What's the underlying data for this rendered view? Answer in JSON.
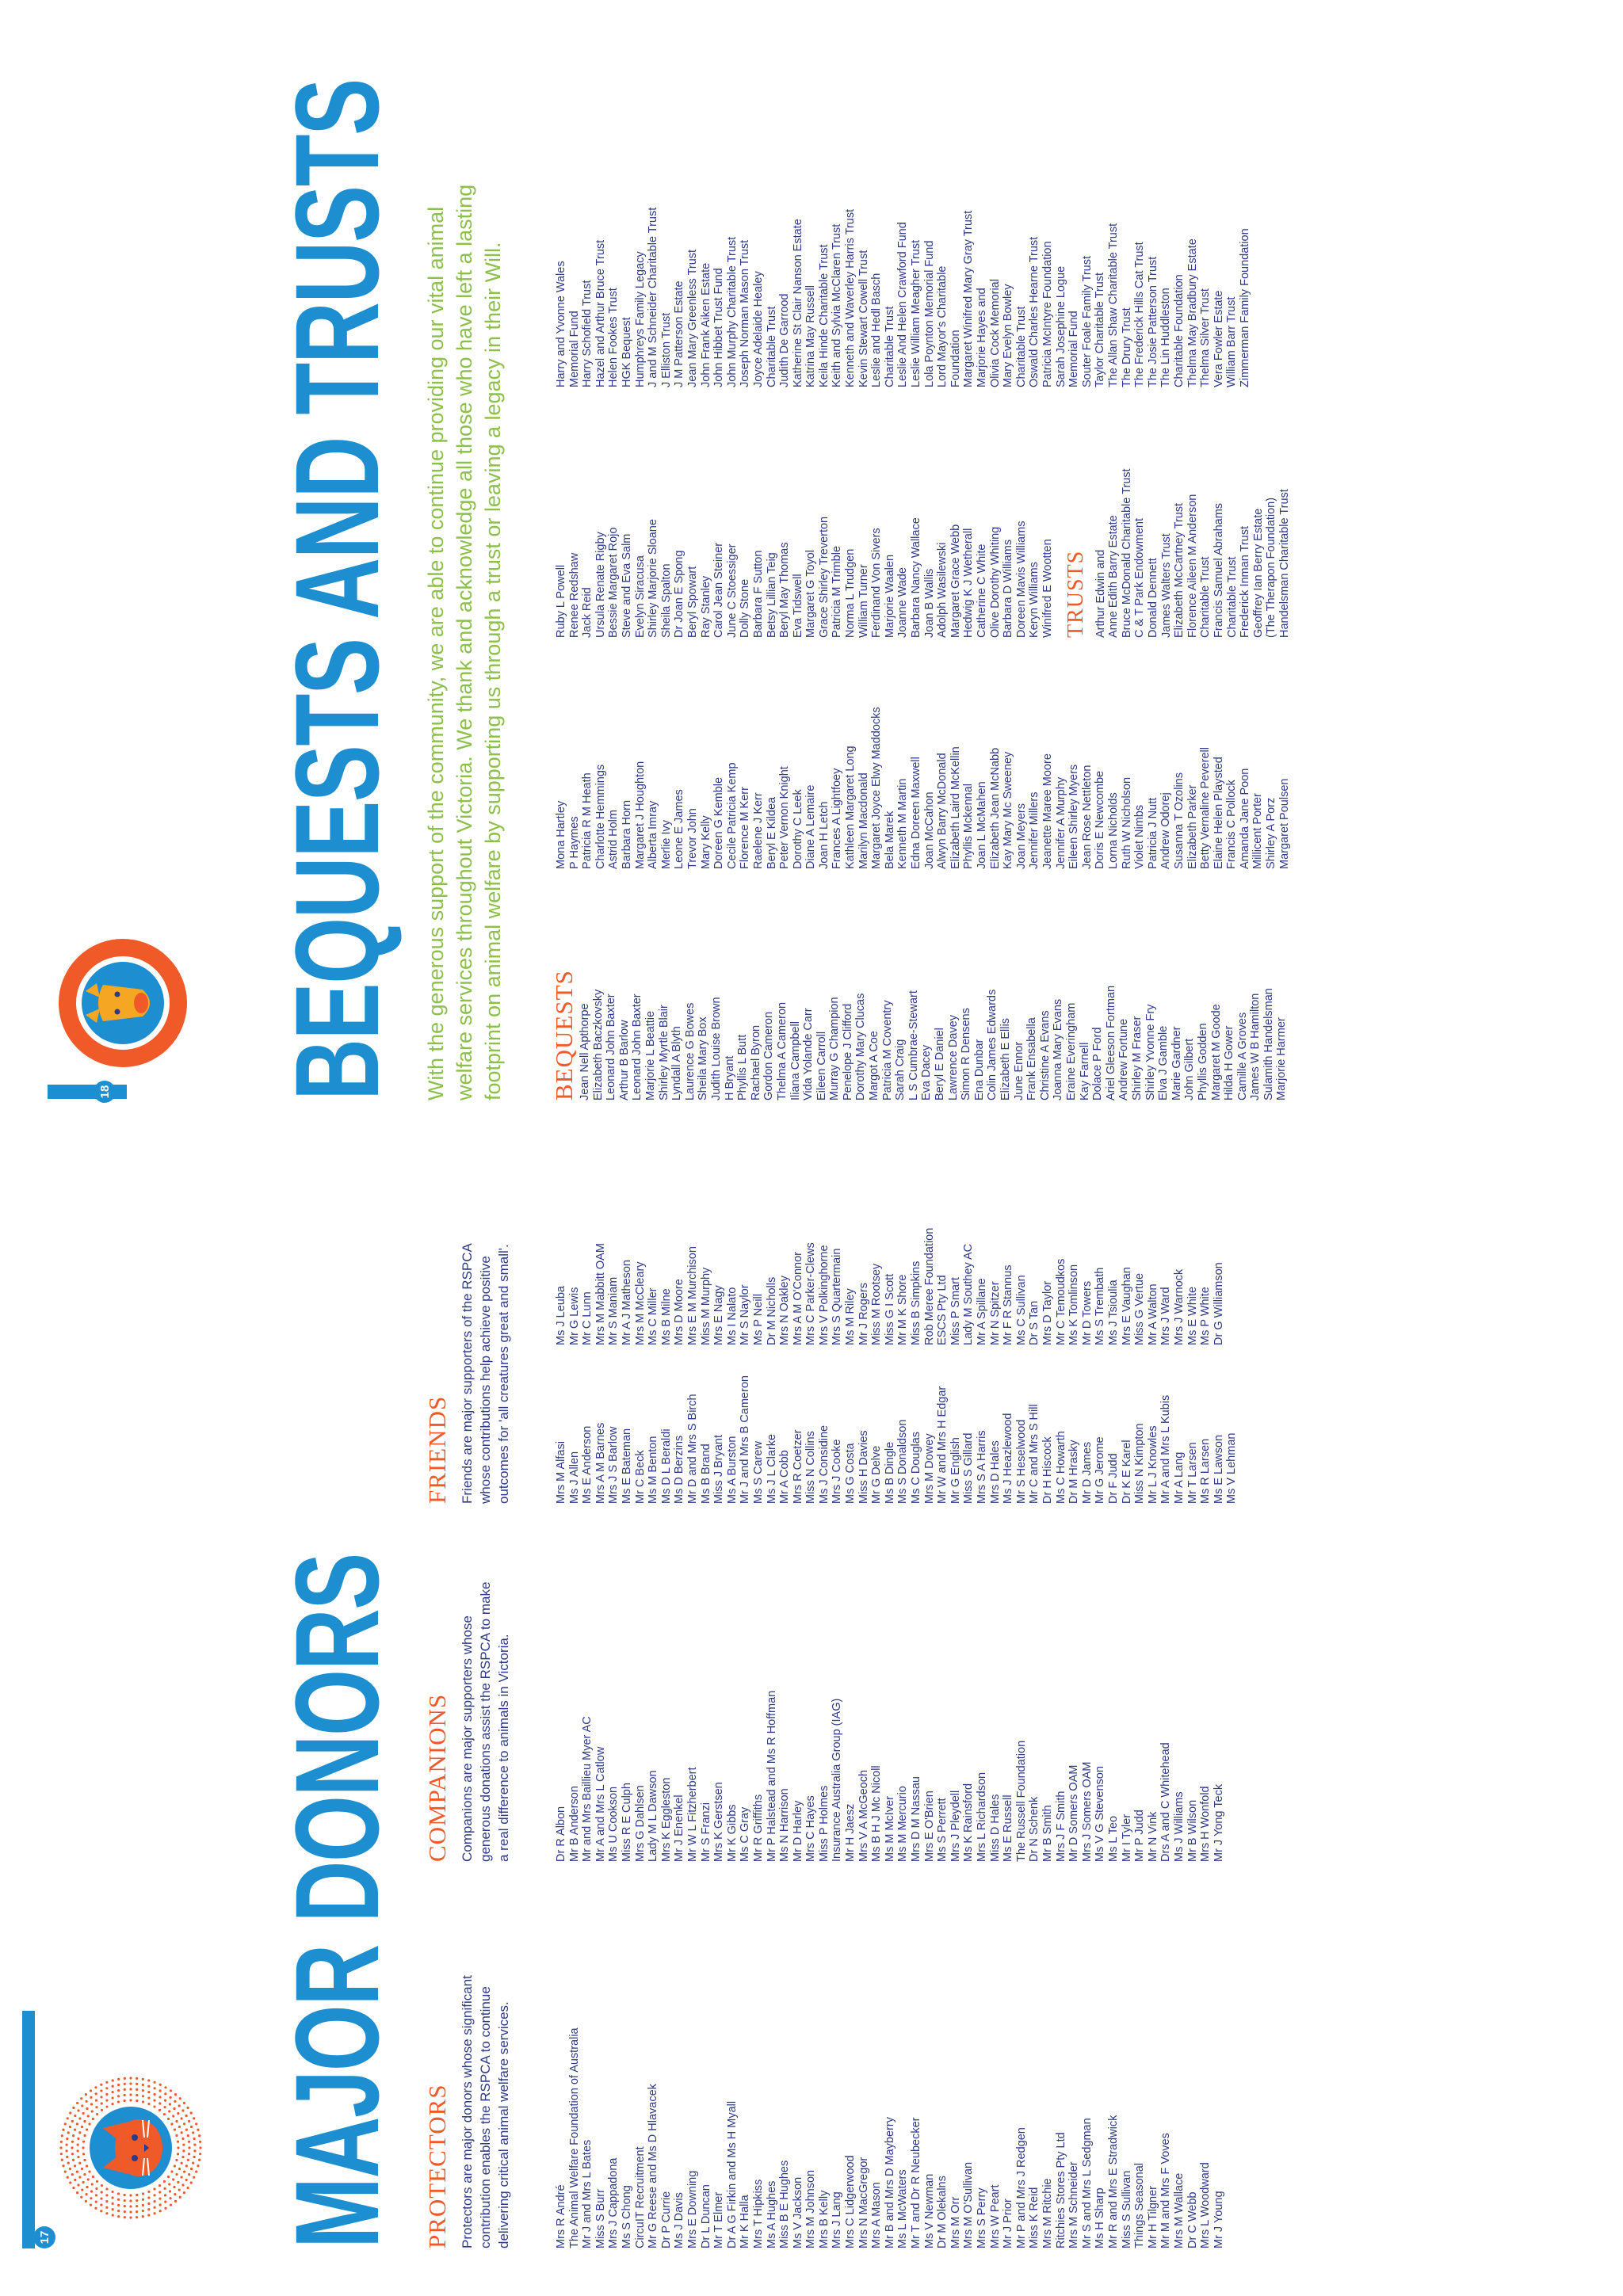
{
  "page17": {
    "page_number": "17",
    "title": "MAJOR DONORS",
    "protectors": {
      "heading": "PROTECTORS",
      "intro": "Protectors are major donors whose significant contribution enables the RSPCA to continue delivering critical animal welfare services.",
      "names": [
        "Mrs R André",
        "The Animal Welfare Foundation of Australia",
        "Mr J and Mrs L Bates",
        "Miss S Burr",
        "Mrs J Cappadona",
        "Ms S Chong",
        "CircuIT Recruitment",
        "Mr G Reese and Ms D Hlavacek",
        "Dr P Currie",
        "Ms J Davis",
        "Mrs E Downing",
        "Dr L Duncan",
        "Mr T Elmer",
        "Dr A G Firkin and Ms H Myall",
        "Mr K Halla",
        "Mrs T Hipkiss",
        "Ms A Hughes",
        "Miss B E Hughes",
        "Ms V Jackson",
        "Mrs M Johnson",
        "Mrs B Kelly",
        "Mrs J Lang",
        "Mrs C Lidgerwood",
        "Mrs N MacGregor",
        "Mrs A Mason",
        "Mr B and Mrs D Mayberry",
        "Ms L McWaters",
        "Mr T and Dr R Neubecker",
        "Ms V Newman",
        "Dr M Olekalns",
        "Mrs M Orr",
        "Mrs M O'Sullivan",
        "Mrs S Perry",
        "Mrs W Peart",
        "Mr J Prior",
        "Mr P and Mrs J Redgen",
        "Miss K Reid",
        "Mrs M Ritchie",
        "Ritchies Stores Pty Ltd",
        "Mrs M Schneider",
        "Mr S and Mrs L Sedgman",
        "Ms H Sharp",
        "Mr R and Mrs E Stradwick",
        "Miss S Sullivan",
        "Things Seasonal",
        "Mr H Tilgner",
        "Mr M and Mrs F Voves",
        "Mrs M Wallace",
        "Dr C Webb",
        "Mrs L Woodward",
        "Mr J Young"
      ]
    },
    "companions": {
      "heading": "COMPANIONS",
      "intro": "Companions are major supporters whose generous donations assist the RSPCA to make a real difference to animals in Victoria.",
      "names": [
        "Dr R Albon",
        "Mr B Anderson",
        "Mr and Mrs Baillieu Myer AC",
        "Mr A and Mrs L Catlow",
        "Ms U Cookson",
        "Miss R E Culph",
        "Mrs G Dahlsen",
        "Lady M L Dawson",
        "Mrs K Eggleston",
        "Mr J Enenkel",
        "Mr W L Fitzherbert",
        "Mr S Franzi",
        "Mrs K Gerstsen",
        "Mr K Gibbs",
        "Ms C Gray",
        "Mr R Griffiths",
        "Mr P Halstead and Ms R Hoffman",
        "Ms N Harrison",
        "Mr D Harley",
        "Mrs C Hayes",
        "Miss P Holmes",
        "Insurance Australia Group (IAG)",
        "Mr H Jaesz",
        "Mrs V A McGeoch",
        "Ms B H J Mc Nicoll",
        "Ms M McIver",
        "Ms M Mercurio",
        "Mrs D M Nassau",
        "Mrs E O'Brien",
        "Ms S Perrett",
        "Mrs J Pleydell",
        "Ms K Rainsford",
        "Mrs L Richardson",
        "Miss D Hales",
        "Ms E Russell",
        "The Russell Foundation",
        "Dr N Schenk",
        "Mr B Smith",
        "Mrs J F Smith",
        "Mr D Somers OAM",
        "Mrs J Somers OAM",
        "Ms V G Stevenson",
        "Ms L Teo",
        "Mr I Tyler",
        "Mr P Judd",
        "Mr N Vink",
        "Drs A and C Whitehead",
        "Ms J Williams",
        "Mr B Wilson",
        "Mrs H Wonfold",
        "Mr J Yong Teck"
      ]
    },
    "friends": {
      "heading": "FRIENDS",
      "intro": "Friends are major supporters of the RSPCA whose contributions help achieve positive outcomes for 'all creatures great and small'.",
      "col1": [
        "Mrs M Alfasi",
        "Ms J Allen",
        "Ms E Anderson",
        "Mrs A M Barnes",
        "Mrs J S Barlow",
        "Ms E Bateman",
        "Mr C Beck",
        "Ms M Benton",
        "Ms D L Beraldi",
        "Ms D Berzins",
        "Mr D and Mrs S Birch",
        "Ms B Brand",
        "Miss J Bryant",
        "Ms A Burston",
        "Mr J and Mrs B Cameron",
        "Ms S Carew",
        "Ms J L Clarke",
        "Mr A Cobb",
        "Mrs R Coetzer",
        "Miss N Collins",
        "Ms J Considine",
        "Mrs J Cooke",
        "Ms G Costa",
        "Miss H Davies",
        "Mr G Delve",
        "Ms B Dingle",
        "Ms S Donaldson",
        "Ms C Douglas",
        "Mrs M Dowey",
        "Mr W and Mrs H Edgar",
        "Mr G English",
        "Miss S Gillard",
        "Mrs S A Harris",
        "Mrs D Hales",
        "Ms J Heazlewood",
        "Mr S Heselwood",
        "Mr C and Mrs S Hill",
        "Dr H Hiscock",
        "Ms C Howarth",
        "Dr M Hrasky",
        "Mr D James",
        "Mr G Jerome",
        "Dr F Judd",
        "Dr K E Karel",
        "Miss N Kimpton",
        "Mr L J Knowles",
        "Mr A and Mrs L Kubis",
        "Mr A Lang",
        "Mr T Larsen",
        "Ms R Larsen",
        "Ms E Lawson",
        "Ms V Lehman"
      ],
      "col2": [
        "Ms J Leuba",
        "Mr G Lewis",
        "Mr C Lunn",
        "Mrs M Mabbitt OAM",
        "Mr S Maniam",
        "Mr A J Matheson",
        "Mrs M McCleary",
        "Ms C Miller",
        "Ms B Milne",
        "Mrs D Moore",
        "Mrs E M Murchison",
        "Miss M Murphy",
        "Mrs E Nagy",
        "Ms I Nalato",
        "Mr S Naylor",
        "Ms P Neill",
        "Dr M Nicholls",
        "Mrs N Oakley",
        "Mrs A M O'Connor",
        "Mrs C Parker-Clews",
        "Mrs V Polkinghorne",
        "Mrs S Quartermain",
        "Ms M Riley",
        "Mr J Rogers",
        "Miss M Rootsey",
        "Miss G I Scott",
        "Mr M K Shore",
        "Miss B Simpkins",
        "Rob Meree Foundation",
        "ESCS Pty Ltd",
        "Miss P Smart",
        "Lady M Southey AC",
        "Mr A Spillane",
        "Mr N Spitzer",
        "Mr F R Stannus",
        "Ms C Sullivan",
        "Dr S Tan",
        "Mrs D Taylor",
        "Mr C Temoudkos",
        "Ms K Tomlinson",
        "Mr D Towers",
        "Ms S Trembath",
        "Ms J Tsioulia",
        "Mrs E Vaughan",
        "Miss G Vertue",
        "Mr A Walton",
        "Mrs J Ward",
        "Mrs J Warnock",
        "Ms E White",
        "Ms P White",
        "Dr G Williamson"
      ]
    }
  },
  "page18": {
    "page_number": "18",
    "title": "BEQUESTS AND TRUSTS",
    "intro": "With the generous support of the community, we are able to continue providing our vital animal welfare services throughout Victoria. We thank and acknowledge all those who have left a lasting footprint on animal welfare by supporting us through a trust or leaving a legacy in their Will.",
    "bequests_heading": "BEQUESTS",
    "trusts_heading": "TRUSTS",
    "col1": [
      "Jean Nell Apthorpe",
      "Elizabeth Baczkovsky",
      "Leonard John Baxter",
      "Arthur B Barlow",
      "Leonard John Baxter",
      "Marjorie L Beattie",
      "Shirley Myrtle Blair",
      "Lyndall A Blyth",
      "Laurence G Bowes",
      "Sheila Mary Box",
      "Judith Louise Brown",
      "H Bryant",
      "Phyllis L Butt",
      "Rachael Byron",
      "Gordon Cameron",
      "Thelma A Cameron",
      "Iliana Campbell",
      "Vida Yolande Carr",
      "Eileen Carroll",
      "Murray G Champion",
      "Penelope J Clifford",
      "Dorothy Mary Clucas",
      "Margot A Coe",
      "Patricia M Coventry",
      "Sarah Craig",
      "L S Cumbrae-Stewart",
      "Eva Dacey",
      "Beryl E Daniel",
      "Lawrence Davey",
      "Simon R Densens",
      "Ena Dunbar",
      "Colin James Edwards",
      "Elizabeth E Ellis",
      "June Ennor",
      "Frank Ensabella",
      "Christine A Evans",
      "Joanna Mary Evans",
      "Eraine Everingham",
      "Kay Farnell",
      "Dolace P Ford",
      "Ariel Gleeson Fortman",
      "Andrew Fortune",
      "Shirley M Fraser",
      "Shirley Yvonne Fry",
      "Elva J Gamble",
      "Marie Gardner",
      "John Gilbert",
      "Phyllis Godden",
      "Margaret M Goode",
      "Hilda H Gower",
      "Camille A Groves",
      "James W B Hamilton",
      "Sulamith Handelsman",
      "Marjorie Harmer"
    ],
    "col2": [
      "Mona Hartley",
      "P Haymes",
      "Patricia R M Heath",
      "Charlotte Hemmings",
      "Astrid Holm",
      "Barbara Horn",
      "Margaret J Houghton",
      "Alberta Imray",
      "Merlie Ivy",
      "Leone E James",
      "Trevor John",
      "Mary Kelly",
      "Doreen G Kemble",
      "Cecile Patricia Kemp",
      "Florence M Kerr",
      "Raelene J Kerr",
      "Beryl E Kildea",
      "Peter Vernon Knight",
      "Dorothy C Leek",
      "Diane A Lemaire",
      "Joan H Letch",
      "Frances A Lightfoey",
      "Kathleen Margaret Long",
      "Marilyn Macdonald",
      "Margaret Joyce Elwy Maddocks",
      "Bela Marek",
      "Kenneth M Martin",
      "Edna Doreen Maxwell",
      "Joan McCahon",
      "Alwyn Barry McDonald",
      "Elizabeth Laird McKellin",
      "Phyllis Mckennal",
      "Joan L McMahen",
      "Elizabeth Jean McNabb",
      "Kay Mary Mc Sweeney",
      "Joan Meyers",
      "Jennifer Millers",
      "Jeanette Maree Moore",
      "Jennifer A Murphy",
      "Eileen Shirley Myers",
      "Jean Rose Nettleton",
      "Doris E Newcombe",
      "Lorna Nicholds",
      "Ruth W Nicholson",
      "Violet Nimbs",
      "Patricia J Nutt",
      "Andrew Odorej",
      "Susanna T Ozolins",
      "Elizabeth Parker",
      "Betty Vernaline Peverell",
      "Elaine Helen Playsted",
      "Francis C Pollock",
      "Amanda Jane Poon",
      "Millicent Porter",
      "Shirley A Porz",
      "Margaret Poulsen"
    ],
    "col3": [
      "Ruby L Powell",
      "Renee Redshaw",
      "Jack Reid",
      "Ursula Renate Rigby",
      "Bessie Margaret Rojo",
      "Steve and Eva Salm",
      "Evelyn Siracusa",
      "Shirley Marjorie Sloane",
      "Sheila Spalton",
      "Dr Joan E Spong",
      "Beryl Spowart",
      "Ray Stanley",
      "Carol Jean Steiner",
      "June C Stoessiger",
      "Dolly Stone",
      "Barbara F Sutton",
      "Betsy Lillian Teig",
      "Beryl May Thomas",
      "Eva Tidswell",
      "Margaret G Toyol",
      "Grace Shirley Treverton",
      "Patricia M Trimble",
      "Norma L Trudgen",
      "William Turner",
      "Ferdinand Von Sivers",
      "Marjorie Waalen",
      "Joanne Wade",
      "Barbara Nancy Wallace",
      "Joan B Wallis",
      "Adolph Wasilewski",
      "Margaret Grace Webb",
      "Hedwig K J Wetherall",
      "Catherine C White",
      "Olive Dorothy Whiting",
      "Barbara D Williams",
      "Doreen Mavis Williams",
      "Keryn Williams",
      "Winifred E Wootten"
    ],
    "col3_trusts": [
      "Arthur Edwin and",
      "Anne Edith Barry Estate",
      "Bruce McDonald Charitable Trust",
      "C & T Park Endowment",
      "Donald Dennett",
      "James Walters Trust",
      "Elizabeth McCartney Trust",
      "Florence Aileen M Anderson",
      "Charitable Trust",
      "Francis Samuel Abrahams",
      "Charitable Trust",
      "Frederick Inman Trust",
      "Geoffrey Ian Berry Estate",
      "(The Therapon Foundation)",
      "Handelsman Charitable Trust"
    ],
    "col4": [
      "Harry and Yvonne Wales",
      "Memorial Fund",
      "Harry Schofield Trust",
      "Hazel and Arthur Bruce Trust",
      "Helen Fookes Trust",
      "HGK Bequest",
      "Humphreys Family Legacy",
      "J and M Schneider Charitable Trust",
      "J Elliston Trust",
      "J M Patterson Estate",
      "Jean Mary Greenless Trust",
      "John Frank Aiken Estate",
      "John Hibbet Trust Fund",
      "John Murphy Charitable Trust",
      "Joseph Norman Mason Trust",
      "Joyce Adelaide Healey",
      "Charitable Trust",
      "Judith De Garrood",
      "Katherine St Clair Nanson Estate",
      "Katrina May Russell",
      "Keila Hinde Charitable Trust",
      "Keith and Sylvia McClaren Trust",
      "Kenneth and Waverley Harris Trust",
      "Kevin Stewart Cowell Trust",
      "Leslie and Hedl Basch",
      "Charitable Trust",
      "Leslie And Helen Crawford Fund",
      "Leslie William Meagher Trust",
      "Lola Poynton Memorial Fund",
      "Lord Mayor's Charitable",
      "Foundation",
      "Margaret Winifred Mary Gray Trust",
      "Marjorie Hayes and",
      "Olivia Cock Memorial",
      "Mary Evelyn Bowley",
      "Charitable Trust",
      "Oswald Charles Hearne Trust",
      "Patricia McIntyre Foundation",
      "Sarah Josephine Logue",
      "Memorial Fund",
      "Souter Foale Family Trust",
      "Taylor Charitable Trust",
      "The Allan Shaw Charitable Trust",
      "The Drury Trust",
      "The Frederick Hills Cat Trust",
      "The Josie Patterson Trust",
      "The Lin Huddleston",
      "Charitable Foundation",
      "Thelma May Bradbury Estate",
      "Thelma Silver Trust",
      "Vera Fowler Estate",
      "William Barr Trust",
      "Zimmerman Family Foundation"
    ]
  },
  "colors": {
    "blue": "#1d8fd1",
    "orange": "#ef5a28",
    "navy": "#2e3a87",
    "green": "#8cc04a"
  }
}
